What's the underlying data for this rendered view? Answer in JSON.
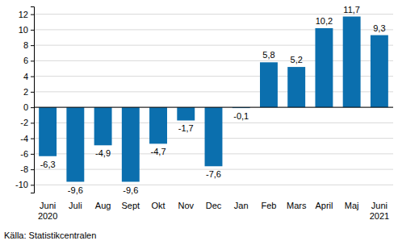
{
  "chart_data": {
    "type": "bar",
    "categories": [
      "Juni 2020",
      "Juli",
      "Aug",
      "Sept",
      "Okt",
      "Nov",
      "Dec",
      "Jan",
      "Feb",
      "Mars",
      "April",
      "Maj",
      "Juni 2021"
    ],
    "values": [
      -6.3,
      -9.6,
      -4.9,
      -9.6,
      -4.7,
      -1.7,
      -7.6,
      -0.1,
      5.8,
      5.2,
      10.2,
      11.7,
      9.3
    ],
    "value_labels": [
      "-6,3",
      "-9,6",
      "-4,9",
      "-9,6",
      "-4,7",
      "-1,7",
      "-7,6",
      "-0,1",
      "5,8",
      "5,2",
      "10,2",
      "11,7",
      "9,3"
    ],
    "color": "#0b6fae",
    "ylim": [
      -11,
      13
    ],
    "yticks": [
      -10,
      -8,
      -6,
      -4,
      -2,
      0,
      2,
      4,
      6,
      8,
      10,
      12
    ],
    "grid": true,
    "data_labels": true,
    "source": "Källa: Statistikcentralen"
  }
}
